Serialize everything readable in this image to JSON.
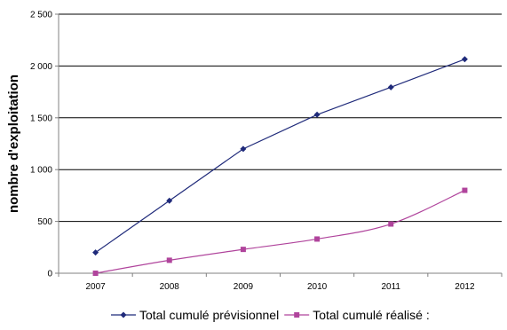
{
  "chart_data": {
    "type": "line",
    "title": "",
    "xlabel": "",
    "ylabel": "nombre d'exploitation",
    "categories": [
      "2007",
      "2008",
      "2009",
      "2010",
      "2011",
      "2012"
    ],
    "ylim": [
      0,
      2500
    ],
    "yticks": [
      0,
      500,
      1000,
      1500,
      2000,
      2500
    ],
    "ytick_labels": [
      "0",
      "500",
      "1 000",
      "1 500",
      "2 000",
      "2 500"
    ],
    "grid": "horizontal",
    "legend_position": "bottom",
    "series": [
      {
        "name": "Total cumulé prévisionnel",
        "values": [
          200,
          700,
          1200,
          1530,
          1795,
          2065
        ],
        "color": "#1f2a7a",
        "marker": "diamond"
      },
      {
        "name": "Total cumulé réalisé :",
        "values": [
          0,
          125,
          230,
          330,
          475,
          800
        ],
        "color": "#b0449c",
        "marker": "square"
      }
    ]
  }
}
